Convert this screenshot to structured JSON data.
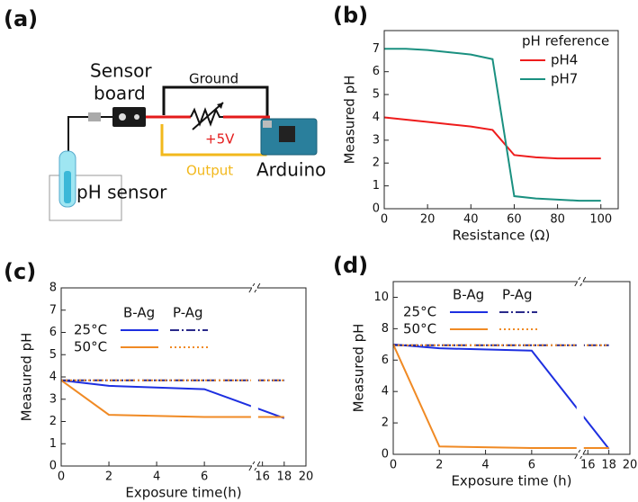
{
  "panel_a": {
    "label": "(a)",
    "sensor": "Sensor",
    "board": "board",
    "ground": "Ground",
    "supply": "+5V",
    "output": "Output",
    "arduino": "Arduino",
    "ph_sensor": "pH sensor"
  },
  "chart_data": [
    {
      "type": "line",
      "label": "(b)",
      "x_label": "Resistance (Ω)",
      "y_label": "Measured pH",
      "x": [
        0,
        10,
        20,
        30,
        40,
        50,
        60,
        70,
        80,
        90,
        100
      ],
      "xlim": [
        0,
        108
      ],
      "xticks": [
        0,
        20,
        40,
        60,
        80,
        100
      ],
      "ylim": [
        0,
        7.8
      ],
      "yticks": [
        0,
        1,
        2,
        3,
        4,
        5,
        6,
        7
      ],
      "legend_title": "pH reference",
      "series": [
        {
          "name": "pH4",
          "color": "#ee1c1c",
          "dash": "solid",
          "values": [
            4.0,
            3.9,
            3.8,
            3.7,
            3.6,
            3.45,
            2.35,
            2.25,
            2.2,
            2.2,
            2.2
          ]
        },
        {
          "name": "pH7",
          "color": "#1a9080",
          "dash": "solid",
          "values": [
            7.0,
            7.0,
            6.95,
            6.85,
            6.75,
            6.55,
            0.55,
            0.45,
            0.4,
            0.35,
            0.35
          ]
        }
      ]
    },
    {
      "type": "line",
      "label": "(c)",
      "x_label": "Exposure time(h)",
      "y_label": "Measured pH",
      "x": [
        0,
        2,
        6,
        18
      ],
      "xlim": [
        0,
        20
      ],
      "xbreak": [
        8,
        15.5
      ],
      "xticks": [
        0,
        2,
        4,
        6,
        16,
        18,
        20
      ],
      "ylim": [
        0,
        8
      ],
      "yticks": [
        0,
        1,
        2,
        3,
        4,
        5,
        6,
        7,
        8
      ],
      "legend": {
        "columns": [
          "B-Ag",
          "P-Ag"
        ],
        "rows": [
          "25°C",
          "50°C"
        ]
      },
      "series": [
        {
          "legend_col": 0,
          "legend_row": 0,
          "color": "#1d2fe0",
          "dash": "solid",
          "values": [
            3.85,
            3.6,
            3.45,
            2.15
          ]
        },
        {
          "legend_col": 0,
          "legend_row": 1,
          "color": "#f08a24",
          "dash": "solid",
          "values": [
            3.85,
            2.3,
            2.2,
            2.2
          ]
        },
        {
          "legend_col": 1,
          "legend_row": 0,
          "color": "#2a2a8a",
          "dash": "dashdot",
          "values": [
            3.85,
            3.85,
            3.85,
            3.85
          ]
        },
        {
          "legend_col": 1,
          "legend_row": 1,
          "color": "#f08a24",
          "dash": "dotted",
          "values": [
            3.85,
            3.85,
            3.85,
            3.85
          ]
        }
      ]
    },
    {
      "type": "line",
      "label": "(d)",
      "x_label": "Exposure time (h)",
      "y_label": "Measured pH",
      "x": [
        0,
        2,
        6,
        18
      ],
      "xlim": [
        0,
        20
      ],
      "xbreak": [
        8,
        15.5
      ],
      "xticks": [
        0,
        2,
        4,
        6,
        16,
        18,
        20
      ],
      "ylim": [
        0,
        11
      ],
      "yticks": [
        0,
        2,
        4,
        6,
        8,
        10
      ],
      "legend": {
        "columns": [
          "B-Ag",
          "P-Ag"
        ],
        "rows": [
          "25°C",
          "50°C"
        ]
      },
      "series": [
        {
          "legend_col": 0,
          "legend_row": 0,
          "color": "#1d2fe0",
          "dash": "solid",
          "values": [
            7.0,
            6.75,
            6.6,
            0.35
          ]
        },
        {
          "legend_col": 0,
          "legend_row": 1,
          "color": "#f08a24",
          "dash": "solid",
          "values": [
            7.0,
            0.5,
            0.4,
            0.4
          ]
        },
        {
          "legend_col": 1,
          "legend_row": 0,
          "color": "#2a2a8a",
          "dash": "dashdot",
          "values": [
            6.95,
            6.95,
            6.95,
            6.95
          ]
        },
        {
          "legend_col": 1,
          "legend_row": 1,
          "color": "#f08a24",
          "dash": "dotted",
          "values": [
            6.95,
            6.95,
            6.95,
            6.95
          ]
        }
      ]
    }
  ]
}
